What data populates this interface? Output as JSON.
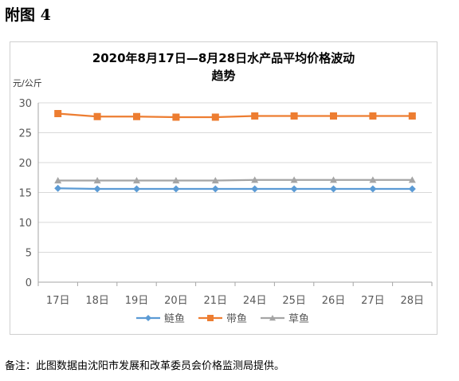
{
  "figure_label": "附图 4",
  "note": "备注：此图数据由沈阳市发展和改革委员会价格监测局提供。",
  "chart_data": {
    "type": "line",
    "title_line1": "2020年8月17日—8月28日水产品平均价格波动",
    "title_line2": "趋势",
    "ylabel": "元/公斤",
    "ylim": [
      0,
      30
    ],
    "yticks": [
      0,
      5,
      10,
      15,
      20,
      25,
      30
    ],
    "grid": true,
    "legend_position": "bottom",
    "categories": [
      "17日",
      "18日",
      "19日",
      "20日",
      "21日",
      "24日",
      "25日",
      "26日",
      "27日",
      "28日"
    ],
    "series": [
      {
        "name": "鲢鱼",
        "color": "#5b9bd5",
        "marker": "diamond",
        "values": [
          15.7,
          15.6,
          15.6,
          15.6,
          15.6,
          15.6,
          15.6,
          15.6,
          15.6,
          15.6
        ]
      },
      {
        "name": "带鱼",
        "color": "#ed7d31",
        "marker": "square",
        "values": [
          28.2,
          27.7,
          27.7,
          27.6,
          27.6,
          27.8,
          27.8,
          27.8,
          27.8,
          27.8
        ]
      },
      {
        "name": "草鱼",
        "color": "#a5a5a5",
        "marker": "triangle",
        "values": [
          17.0,
          17.0,
          17.0,
          17.0,
          17.0,
          17.1,
          17.1,
          17.1,
          17.1,
          17.1
        ]
      }
    ]
  }
}
